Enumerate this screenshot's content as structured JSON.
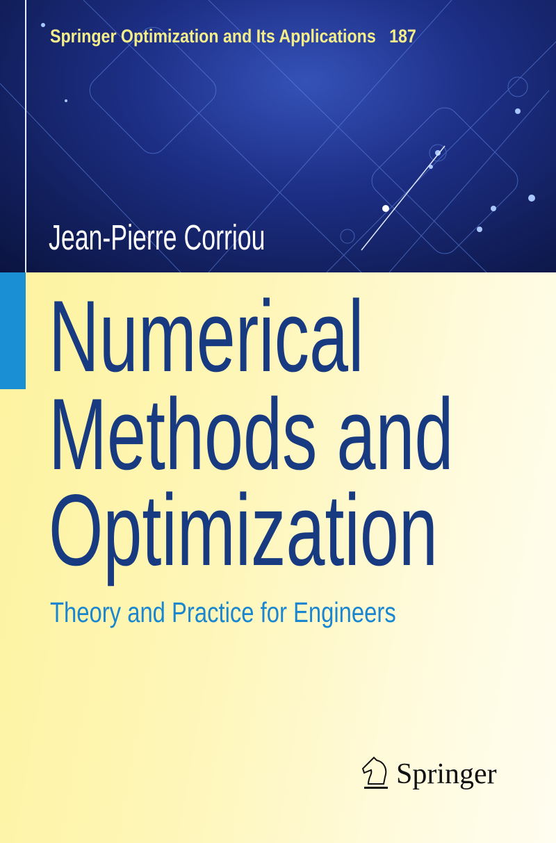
{
  "series": {
    "name": "Springer Optimization and Its Applications",
    "volume": "187"
  },
  "author": "Jean-Pierre Corriou",
  "title": {
    "lines": [
      "Numerical",
      "Methods and",
      "Optimization"
    ]
  },
  "subtitle": "Theory and Practice for Engineers",
  "publisher": {
    "name": "Springer",
    "logo": "knight-chess-piece-icon"
  },
  "colors": {
    "band": "#1d2f86",
    "title": "#183a80",
    "subtitle": "#1a86cf",
    "series": "#f3ee8a",
    "accent_strip": "#1b8fd3",
    "background": "#fdf29a"
  }
}
